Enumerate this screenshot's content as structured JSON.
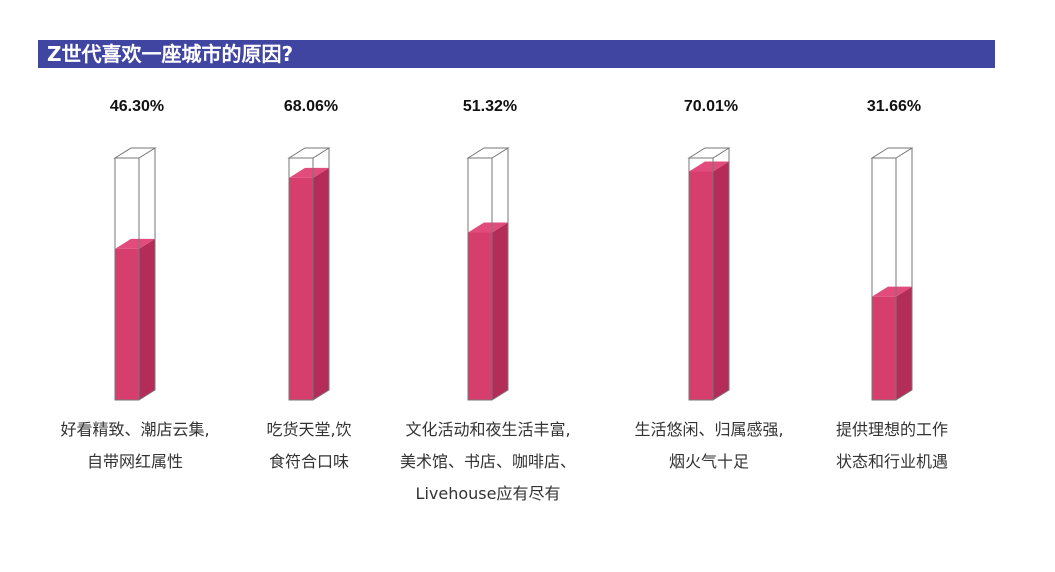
{
  "title": "Z世代喜欢一座城市的原因?",
  "colors": {
    "title_bg": "#3f45a0",
    "bar": "#d63e6e",
    "bar_side": "#b42c58",
    "bar_top": "#e24c7c",
    "outline": "#777777"
  },
  "chart_data": {
    "type": "bar",
    "title": "Z世代喜欢一座城市的原因?",
    "unit": "%",
    "ylim": [
      0,
      80
    ],
    "categories": [
      [
        "好看精致、潮店云集,",
        "自带网红属性"
      ],
      [
        "吃货天堂,饮",
        "食符合口味"
      ],
      [
        "文化活动和夜生活丰富,",
        "美术馆、书店、咖啡店、",
        "Livehouse应有尽有"
      ],
      [
        "生活悠闲、归属感强,",
        "烟火气十足"
      ],
      [
        "提供理想的工作",
        "状态和行业机遇"
      ]
    ],
    "values": [
      46.3,
      68.06,
      51.32,
      70.01,
      31.66
    ],
    "value_labels": [
      "46.30%",
      "68.06%",
      "51.32%",
      "70.01%",
      "31.66%"
    ]
  }
}
